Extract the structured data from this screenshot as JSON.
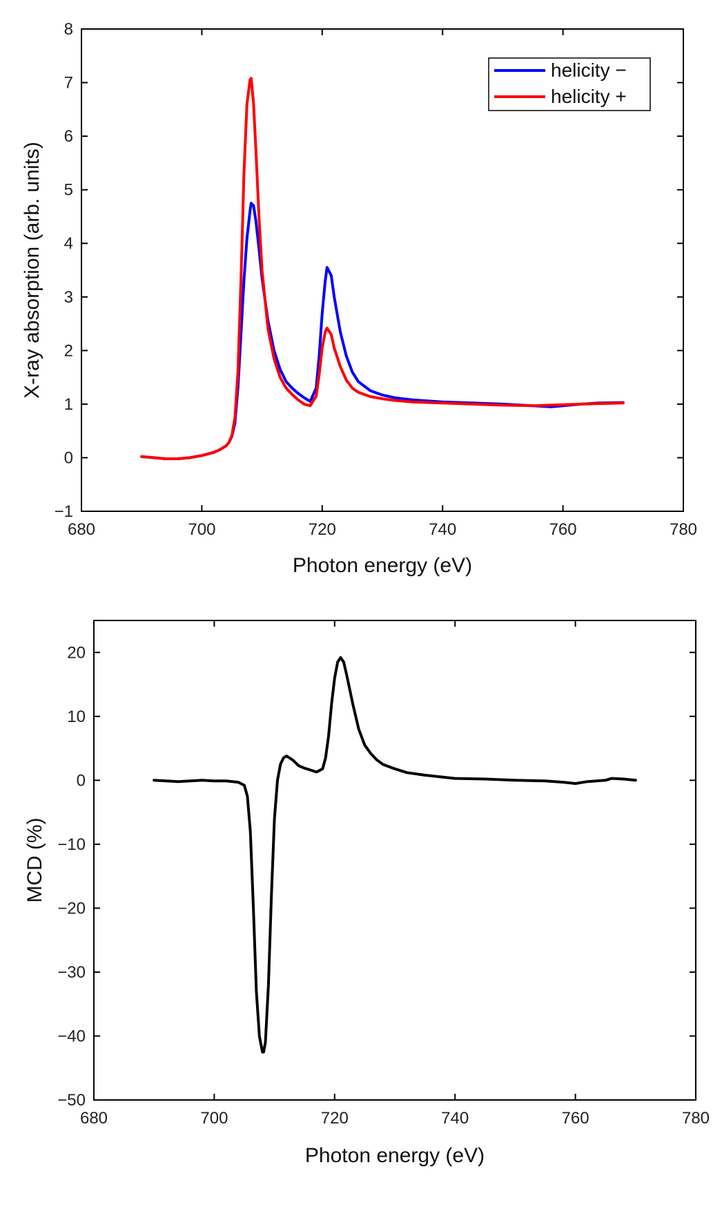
{
  "chart_data": [
    {
      "type": "line",
      "title": "",
      "xlabel": "Photon energy (eV)",
      "ylabel": "X-ray absorption (arb. units)",
      "xlim": [
        680,
        780
      ],
      "ylim": [
        -1,
        8
      ],
      "xticks": [
        680,
        700,
        720,
        740,
        760,
        780
      ],
      "yticks": [
        -1,
        0,
        1,
        2,
        3,
        4,
        5,
        6,
        7,
        8
      ],
      "xtick_labels": [
        "680",
        "700",
        "720",
        "740",
        "760",
        "780"
      ],
      "ytick_labels": [
        "−1",
        "0",
        "1",
        "2",
        "3",
        "4",
        "5",
        "6",
        "7",
        "8"
      ],
      "grid": false,
      "legend": "top-right",
      "series": [
        {
          "name": "helicity −",
          "color": "#0000ff",
          "x": [
            690,
            692,
            694,
            696,
            698,
            700,
            702,
            703,
            704,
            704.5,
            705,
            705.5,
            706,
            706.5,
            707,
            707.5,
            708,
            708.2,
            708.6,
            709,
            709.5,
            710,
            711,
            712,
            713,
            714,
            715,
            716,
            717,
            718,
            719,
            719.5,
            720,
            720.5,
            720.8,
            721.5,
            722,
            723,
            724,
            725,
            726,
            728,
            730,
            732,
            735,
            740,
            745,
            750,
            755,
            758,
            760,
            763,
            766,
            770
          ],
          "y": [
            0.02,
            0.0,
            -0.02,
            -0.02,
            0.0,
            0.04,
            0.1,
            0.15,
            0.22,
            0.28,
            0.4,
            0.65,
            1.3,
            2.3,
            3.3,
            4.1,
            4.6,
            4.75,
            4.7,
            4.4,
            3.9,
            3.35,
            2.55,
            2.0,
            1.65,
            1.42,
            1.3,
            1.2,
            1.12,
            1.05,
            1.3,
            1.9,
            2.7,
            3.3,
            3.55,
            3.4,
            3.0,
            2.35,
            1.9,
            1.6,
            1.42,
            1.25,
            1.17,
            1.12,
            1.08,
            1.04,
            1.02,
            1.0,
            0.97,
            0.95,
            0.97,
            1.0,
            1.02,
            1.03
          ]
        },
        {
          "name": "helicity +",
          "color": "#ff0000",
          "x": [
            690,
            692,
            694,
            696,
            698,
            700,
            702,
            703,
            704,
            704.5,
            705,
            705.5,
            706,
            706.5,
            707,
            707.5,
            708,
            708.2,
            708.6,
            709,
            709.5,
            710,
            711,
            712,
            713,
            714,
            715,
            716,
            717,
            718,
            719,
            719.5,
            720,
            720.5,
            720.8,
            721.5,
            722,
            723,
            724,
            725,
            726,
            728,
            730,
            732,
            735,
            740,
            745,
            750,
            755,
            758,
            760,
            763,
            766,
            770
          ],
          "y": [
            0.02,
            0.0,
            -0.02,
            -0.02,
            0.0,
            0.04,
            0.1,
            0.15,
            0.22,
            0.28,
            0.42,
            0.75,
            1.6,
            3.3,
            5.3,
            6.6,
            7.05,
            7.08,
            6.6,
            5.7,
            4.5,
            3.5,
            2.4,
            1.85,
            1.5,
            1.3,
            1.18,
            1.08,
            1.0,
            0.97,
            1.15,
            1.55,
            2.05,
            2.35,
            2.42,
            2.3,
            2.05,
            1.7,
            1.45,
            1.3,
            1.22,
            1.14,
            1.1,
            1.07,
            1.04,
            1.02,
            1.0,
            0.98,
            0.97,
            0.98,
            0.99,
            1.0,
            1.01,
            1.02
          ]
        }
      ]
    },
    {
      "type": "line",
      "title": "",
      "xlabel": "Photon energy (eV)",
      "ylabel": "MCD (%)",
      "xlim": [
        680,
        780
      ],
      "ylim": [
        -50,
        25
      ],
      "xticks": [
        680,
        700,
        720,
        740,
        760,
        780
      ],
      "yticks": [
        -50,
        -40,
        -30,
        -20,
        -10,
        0,
        10,
        20
      ],
      "xtick_labels": [
        "680",
        "700",
        "720",
        "740",
        "760",
        "780"
      ],
      "ytick_labels": [
        "−50",
        "−40",
        "−30",
        "−20",
        "−10",
        "0",
        "10",
        "20"
      ],
      "grid": false,
      "legend": "none",
      "series": [
        {
          "color": "#000000",
          "x": [
            690,
            692,
            694,
            696,
            698,
            700,
            702,
            704,
            705,
            705.5,
            706,
            706.5,
            707,
            707.5,
            708,
            708.2,
            708.5,
            709,
            709.5,
            710,
            710.5,
            711,
            711.5,
            712,
            713,
            714,
            715,
            716,
            717,
            718,
            718.5,
            719,
            719.5,
            720,
            720.5,
            721,
            721.5,
            722,
            723,
            724,
            725,
            726,
            727,
            728,
            730,
            732,
            735,
            738,
            740,
            745,
            750,
            755,
            758,
            760,
            762,
            765,
            766,
            768,
            770
          ],
          "y": [
            0.0,
            -0.1,
            -0.2,
            -0.1,
            0.0,
            -0.1,
            -0.1,
            -0.3,
            -0.8,
            -2.5,
            -8,
            -20,
            -33,
            -40,
            -42.5,
            -42.5,
            -41,
            -32,
            -18,
            -6,
            0,
            2.5,
            3.5,
            3.8,
            3.2,
            2.3,
            1.9,
            1.6,
            1.3,
            1.8,
            3.5,
            7,
            12,
            16,
            18.5,
            19.2,
            18.5,
            16.5,
            12,
            8,
            5.5,
            4.2,
            3.2,
            2.5,
            1.8,
            1.2,
            0.8,
            0.5,
            0.3,
            0.2,
            0.0,
            -0.1,
            -0.3,
            -0.5,
            -0.2,
            0.0,
            0.3,
            0.2,
            0.0
          ]
        }
      ]
    }
  ]
}
